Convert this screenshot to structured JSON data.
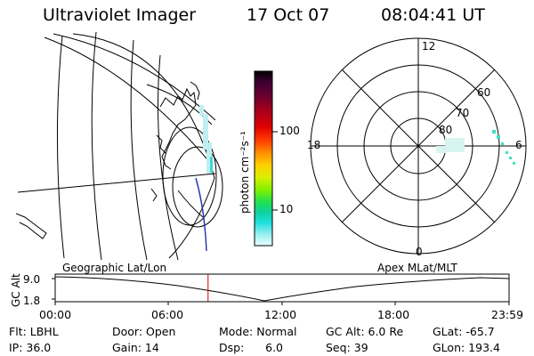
{
  "header": {
    "instrument": "Ultraviolet Imager",
    "date": "17 Oct 07",
    "time": "08:04:41 UT"
  },
  "colorbar": {
    "label": "photon cm⁻²s⁻¹",
    "ticks": [
      "100",
      "10"
    ],
    "colors": [
      "#000000",
      "#3a0030",
      "#6a0030",
      "#a00020",
      "#d00000",
      "#ff3000",
      "#ff8000",
      "#ffc000",
      "#e0f000",
      "#80f000",
      "#20e020",
      "#10d0a0",
      "#20e0e0",
      "#a0f0f0",
      "#e0ffff"
    ]
  },
  "polar_plot": {
    "mlt_labels": [
      "12",
      "18",
      "6",
      "0"
    ],
    "mlat_labels": [
      "80",
      "70",
      "60"
    ]
  },
  "timeline": {
    "left_label": "Geographic Lat/Lon",
    "right_label": "Apex MLat/MLT",
    "y_axis_label": "GC Alt",
    "y_ticks": [
      "9.0",
      "1.8"
    ],
    "x_ticks": [
      "00:00",
      "06:00",
      "12:00",
      "18:00",
      "23:59"
    ],
    "marker_time_hours": 8.078,
    "marker_color": "#cc0000"
  },
  "info": {
    "filter": "Flt: LBHL",
    "door": "Door: Open",
    "mode": "Mode: Normal",
    "gc_alt": "GC Alt: 6.0 Re",
    "glat": "GLat: -65.7",
    "ip": "IP: 36.0",
    "gain": "Gain: 14",
    "dsp": "Dsp:      6.0",
    "seq": "Seq: 39",
    "glon": "GLon: 193.4"
  }
}
